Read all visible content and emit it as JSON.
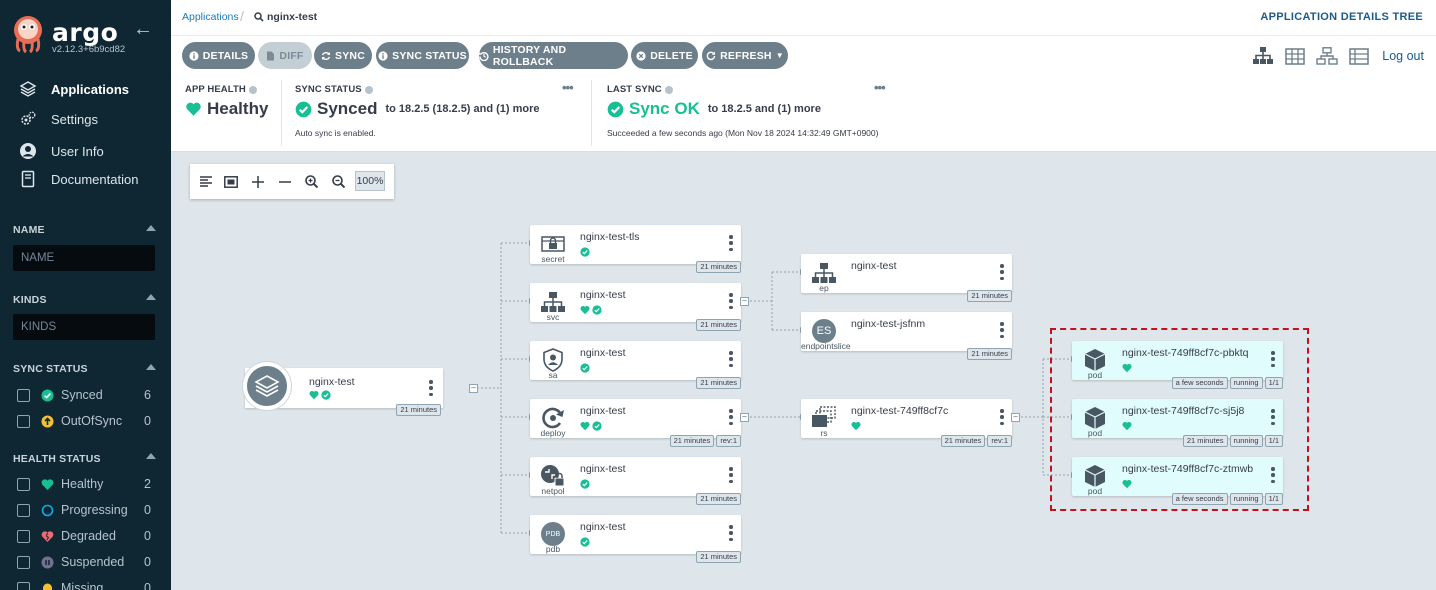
{
  "sidebar": {
    "logo": "argo",
    "version": "v2.12.3+6b9cd82",
    "nav": [
      {
        "label": "Applications",
        "icon": "layers-icon"
      },
      {
        "label": "Settings",
        "icon": "gears-icon"
      },
      {
        "label": "User Info",
        "icon": "user-icon"
      },
      {
        "label": "Documentation",
        "icon": "book-icon"
      }
    ],
    "name_filter": {
      "title": "NAME",
      "placeholder": "NAME"
    },
    "kinds_filter": {
      "title": "KINDS",
      "placeholder": "KINDS"
    },
    "sync_status": {
      "title": "SYNC STATUS",
      "options": [
        {
          "label": "Synced",
          "count": "6",
          "color": "#18be94"
        },
        {
          "label": "OutOfSync",
          "count": "0",
          "color": "#f4c030"
        }
      ]
    },
    "health_status": {
      "title": "HEALTH STATUS",
      "options": [
        {
          "label": "Healthy",
          "count": "2",
          "color": "#18be94"
        },
        {
          "label": "Progressing",
          "count": "0",
          "color": "#0dadea"
        },
        {
          "label": "Degraded",
          "count": "0",
          "color": "#e96d76"
        },
        {
          "label": "Suspended",
          "count": "0",
          "color": "#766f94"
        },
        {
          "label": "Missing",
          "count": "0",
          "color": "#f4c030"
        }
      ]
    }
  },
  "topbar": {
    "breadcrumb_root": "Applications",
    "breadcrumb_current": "nginx-test",
    "page_title": "APPLICATION DETAILS TREE"
  },
  "toolbar": {
    "details": "DETAILS",
    "diff": "DIFF",
    "sync": "SYNC",
    "sync_status": "SYNC STATUS",
    "history": "HISTORY AND ROLLBACK",
    "delete": "DELETE",
    "refresh": "REFRESH",
    "logout": "Log out"
  },
  "status": {
    "app_health": {
      "label": "APP HEALTH",
      "value": "Healthy"
    },
    "sync_status": {
      "label": "SYNC STATUS",
      "value": "Synced",
      "to": "to 18.2.5 (18.2.5) and (1) more",
      "note": "Auto sync is enabled."
    },
    "last_sync": {
      "label": "LAST SYNC",
      "value": "Sync OK",
      "to": "to 18.2.5 and (1) more",
      "note": "Succeeded a few seconds ago (Mon Nov 18 2024 14:32:49 GMT+0900)"
    }
  },
  "zoom": {
    "level": "100%"
  },
  "tree": {
    "app": {
      "name": "nginx-test",
      "age": "21 minutes"
    },
    "col1": [
      {
        "kind": "secret",
        "name": "nginx-test-tls",
        "age": "21 minutes",
        "health": false
      },
      {
        "kind": "svc",
        "name": "nginx-test",
        "age": "21 minutes",
        "health": true
      },
      {
        "kind": "sa",
        "name": "nginx-test",
        "age": "21 minutes",
        "health": false
      },
      {
        "kind": "deploy",
        "name": "nginx-test",
        "age": "21 minutes",
        "rev": "rev:1",
        "health": true
      },
      {
        "kind": "netpol",
        "name": "nginx-test",
        "age": "21 minutes",
        "health": false
      },
      {
        "kind": "pdb",
        "name": "nginx-test",
        "age": "21 minutes",
        "health": false
      }
    ],
    "col2": [
      {
        "kind": "ep",
        "name": "nginx-test",
        "age": "21 minutes"
      },
      {
        "kind": "endpointslice",
        "name": "nginx-test-jsfnm",
        "age": "21 minutes"
      },
      {
        "kind": "rs",
        "name": "nginx-test-749ff8cf7c",
        "age": "21 minutes",
        "rev": "rev:1"
      }
    ],
    "pods": [
      {
        "kind": "pod",
        "name": "nginx-test-749ff8cf7c-pbktq",
        "age": "a few seconds",
        "state": "running",
        "ready": "1/1"
      },
      {
        "kind": "pod",
        "name": "nginx-test-749ff8cf7c-sj5j8",
        "age": "21 minutes",
        "state": "running",
        "ready": "1/1"
      },
      {
        "kind": "pod",
        "name": "nginx-test-749ff8cf7c-ztmwb",
        "age": "a few seconds",
        "state": "running",
        "ready": "1/1"
      }
    ],
    "endpointslice_badge": "ES",
    "pdb_badge": "PDB"
  }
}
